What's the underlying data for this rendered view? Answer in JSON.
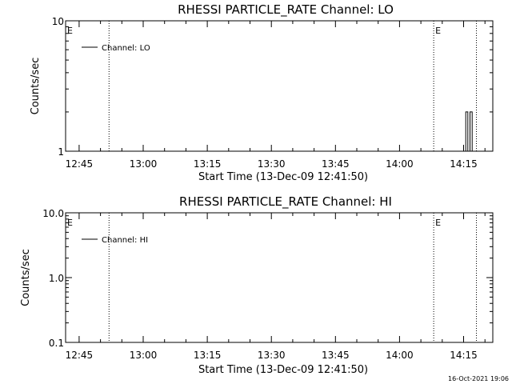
{
  "chart_data": [
    {
      "type": "line",
      "title": "RHESSI PARTICLE_RATE Channel: LO",
      "xlabel": "Start Time (13-Dec-09 12:41:50)",
      "ylabel": "Counts/sec",
      "y_scale": "log",
      "ylim": [
        1,
        10
      ],
      "xlim": [
        "12:41:50",
        "14:21:50"
      ],
      "y_tick_labels": [
        "10",
        "1"
      ],
      "x_tick_labels": [
        "12:45",
        "13:00",
        "13:15",
        "13:30",
        "13:45",
        "14:00",
        "14:15"
      ],
      "grid": false,
      "legend_position": "top-left",
      "series": [
        {
          "name": "Channel: LO",
          "x": [
            "14:15:00",
            "14:15:30",
            "14:15:30",
            "14:16:00",
            "14:16:00",
            "14:16:30",
            "14:16:30",
            "14:17:00",
            "14:17:00",
            "14:17:30"
          ],
          "values": [
            1,
            1,
            2,
            2,
            1,
            1,
            2,
            2,
            1,
            1
          ]
        }
      ],
      "vertical_lines": [
        "12:52:00",
        "14:08:00",
        "14:18:00"
      ],
      "annotations": [
        "E",
        "E"
      ]
    },
    {
      "type": "line",
      "title": "RHESSI PARTICLE_RATE Channel: HI",
      "xlabel": "Start Time (13-Dec-09 12:41:50)",
      "ylabel": "Counts/sec",
      "y_scale": "log",
      "ylim": [
        0.1,
        10
      ],
      "xlim": [
        "12:41:50",
        "14:21:50"
      ],
      "y_tick_labels": [
        "10.0",
        "1.0",
        "0.1"
      ],
      "x_tick_labels": [
        "12:45",
        "13:00",
        "13:15",
        "13:30",
        "13:45",
        "14:00",
        "14:15"
      ],
      "grid": false,
      "legend_position": "top-left",
      "series": [
        {
          "name": "Channel: HI",
          "x": [],
          "values": []
        }
      ],
      "vertical_lines": [
        "12:52:00",
        "14:08:00",
        "14:18:00"
      ],
      "annotations": [
        "E",
        "E"
      ]
    }
  ],
  "footer": {
    "timestamp": "16-Oct-2021 19:06"
  }
}
